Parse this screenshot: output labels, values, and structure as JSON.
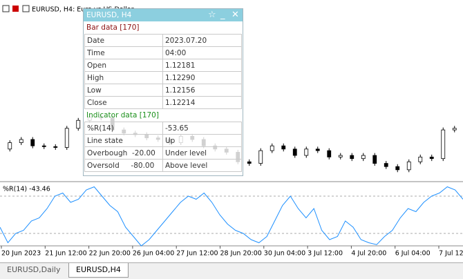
{
  "header": {
    "title": "EURUSD, H4:  Euro vs US Dollar"
  },
  "candles": {
    "open": [
      1.117,
      1.1174,
      1.1176,
      1.1172,
      1.11715,
      1.1171,
      1.1183,
      1.1188,
      1.119,
      1.11895,
      1.1182,
      1.118,
      1.1179,
      1.1177,
      1.1176,
      1.1174,
      1.1178,
      1.1176,
      1.1172,
      1.117,
      1.1168,
      1.1162,
      1.1161,
      1.1169,
      1.1172,
      1.117,
      1.1166,
      1.117,
      1.1169,
      1.1165,
      1.1166,
      1.1164,
      1.1166,
      1.1161,
      1.1159,
      1.1157,
      1.1162,
      1.1165,
      1.1164,
      1.1182
    ],
    "high": [
      1.11755,
      1.11775,
      1.11775,
      1.11735,
      1.1173,
      1.11845,
      1.11895,
      1.11915,
      1.11915,
      1.1191,
      1.11835,
      1.11815,
      1.11805,
      1.11785,
      1.11775,
      1.11795,
      1.11795,
      1.11775,
      1.11735,
      1.11715,
      1.11695,
      1.11635,
      1.11705,
      1.11735,
      1.11735,
      1.11715,
      1.11715,
      1.11715,
      1.11705,
      1.11675,
      1.11675,
      1.11675,
      1.11675,
      1.11625,
      1.11605,
      1.11635,
      1.11665,
      1.11665,
      1.11835,
      1.11845
    ],
    "low": [
      1.11685,
      1.11725,
      1.11705,
      1.117,
      1.11695,
      1.11695,
      1.11815,
      1.11865,
      1.1188,
      1.11805,
      1.11785,
      1.11775,
      1.11755,
      1.11745,
      1.11725,
      1.11725,
      1.11745,
      1.11705,
      1.11685,
      1.11665,
      1.11605,
      1.11595,
      1.11595,
      1.11675,
      1.11685,
      1.11645,
      1.11645,
      1.11675,
      1.11635,
      1.11635,
      1.11625,
      1.11625,
      1.11595,
      1.11575,
      1.11555,
      1.11555,
      1.11605,
      1.11625,
      1.11625,
      1.11805
    ],
    "close": [
      1.1174,
      1.1176,
      1.1172,
      1.11715,
      1.1171,
      1.1183,
      1.1188,
      1.119,
      1.11895,
      1.1182,
      1.118,
      1.1179,
      1.1177,
      1.1176,
      1.1174,
      1.1178,
      1.1176,
      1.1172,
      1.117,
      1.1168,
      1.1162,
      1.1161,
      1.1169,
      1.1172,
      1.117,
      1.1166,
      1.117,
      1.1169,
      1.1165,
      1.1166,
      1.1164,
      1.1166,
      1.1161,
      1.1159,
      1.1157,
      1.1162,
      1.1165,
      1.1164,
      1.1182,
      1.1183
    ],
    "ylim": [
      1.115,
      1.126
    ]
  },
  "indicator": {
    "label": "%R(14) -43.46",
    "values": [
      -70,
      -95,
      -80,
      -75,
      -60,
      -55,
      -40,
      -20,
      -15,
      -30,
      -25,
      -10,
      -5,
      -20,
      -35,
      -45,
      -70,
      -85,
      -100,
      -90,
      -75,
      -60,
      -45,
      -30,
      -20,
      -25,
      -15,
      -30,
      -50,
      -65,
      -75,
      -80,
      -90,
      -95,
      -85,
      -60,
      -35,
      -20,
      -40,
      -55,
      -40,
      -75,
      -90,
      -85,
      -60,
      -70,
      -90,
      -95,
      -98,
      -85,
      -75,
      -55,
      -40,
      -45,
      -30,
      -20,
      -15,
      -5,
      -10,
      -25
    ],
    "ylim": [
      -100,
      0
    ],
    "levels": [
      -20,
      -80
    ]
  },
  "time_axis": [
    "20 Jun 2023",
    "21 Jun 12:00",
    "22 Jun 20:00",
    "26 Jun 04:00",
    "27 Jun 12:00",
    "28 Jun 20:00",
    "30 Jun 04:00",
    "3 Jul 12:00",
    "4 Jul 20:00",
    "6 Jul 04:00",
    "7 Jul 12:00"
  ],
  "panel": {
    "title": "EURUSD, H4",
    "sections": [
      {
        "title": "Bar data [170]",
        "rows": [
          [
            "Date",
            "2023.07.20"
          ],
          [
            "Time",
            "04:00"
          ],
          [
            "Open",
            "1.12181"
          ],
          [
            "High",
            "1.12290"
          ],
          [
            "Low",
            "1.12156"
          ],
          [
            "Close",
            "1.12214"
          ]
        ]
      },
      {
        "title": "Indicator data [170]",
        "rows": [
          [
            "%R(14)",
            "-53.65"
          ],
          [
            "Line state",
            "Up"
          ],
          [
            "Overbough  -20.00",
            "Under level"
          ],
          [
            "Oversold     -80.00",
            "Above level"
          ]
        ]
      }
    ]
  },
  "tabs": [
    "EURUSD,Daily",
    "EURUSD,H4"
  ],
  "active_tab": 1
}
